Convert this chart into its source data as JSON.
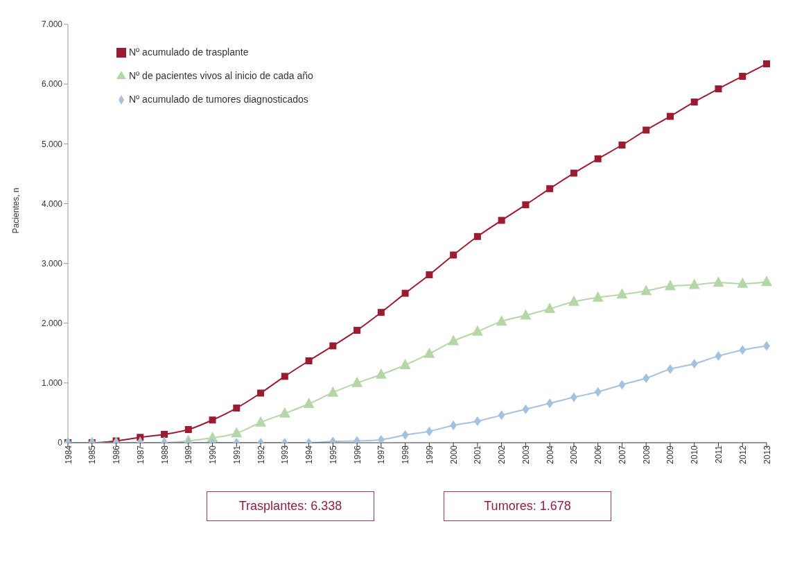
{
  "chart_data": {
    "type": "line",
    "ylabel": "Pacientes, n",
    "categories": [
      "1984",
      "1985",
      "1986",
      "1987",
      "1988",
      "1989",
      "1990",
      "1991",
      "1992",
      "1993",
      "1994",
      "1995",
      "1996",
      "1997",
      "1998",
      "1999",
      "2000",
      "2001",
      "2002",
      "2003",
      "2004",
      "2005",
      "2006",
      "2007",
      "2008",
      "2009",
      "2010",
      "2011",
      "2012",
      "2013"
    ],
    "series": [
      {
        "name": "Nº acumulado de trasplante",
        "color": "#9b1b30",
        "marker": "square",
        "values": [
          0,
          0,
          30,
          90,
          140,
          220,
          380,
          580,
          830,
          1110,
          1370,
          1620,
          1880,
          2180,
          2500,
          2810,
          3140,
          3450,
          3720,
          3980,
          4250,
          4510,
          4750,
          4980,
          5230,
          5460,
          5700,
          5920,
          6130,
          6338
        ]
      },
      {
        "name": "Nº de pacientes vivos al inicio de cada año",
        "color": "#b5d6a7",
        "marker": "triangle",
        "values": [
          0,
          0,
          0,
          0,
          0,
          30,
          80,
          160,
          340,
          490,
          650,
          840,
          1000,
          1140,
          1300,
          1490,
          1700,
          1860,
          2030,
          2130,
          2240,
          2360,
          2430,
          2480,
          2540,
          2620,
          2640,
          2680,
          2660,
          2690
        ]
      },
      {
        "name": "Nº acumulado de tumores diagnosticados",
        "color": "#a4c2e0",
        "marker": "diamond",
        "values": [
          0,
          0,
          0,
          0,
          0,
          0,
          0,
          0,
          0,
          0,
          0,
          20,
          30,
          50,
          130,
          190,
          290,
          360,
          460,
          560,
          660,
          760,
          850,
          970,
          1080,
          1230,
          1320,
          1450,
          1550,
          1620
        ]
      }
    ],
    "ylim": [
      0,
      7000
    ],
    "yticks": [
      {
        "value": 0,
        "label": "0"
      },
      {
        "value": 1000,
        "label": "1.000"
      },
      {
        "value": 2000,
        "label": "2.000"
      },
      {
        "value": 3000,
        "label": "3.000"
      },
      {
        "value": 4000,
        "label": "4.000"
      },
      {
        "value": 5000,
        "label": "5.000"
      },
      {
        "value": 6000,
        "label": "6.000"
      },
      {
        "value": 7000,
        "label": "7.000"
      }
    ],
    "grid": false,
    "legend": "top left",
    "annotations": [
      "Trasplantes: 6.338",
      "Tumores: 1.678"
    ]
  }
}
